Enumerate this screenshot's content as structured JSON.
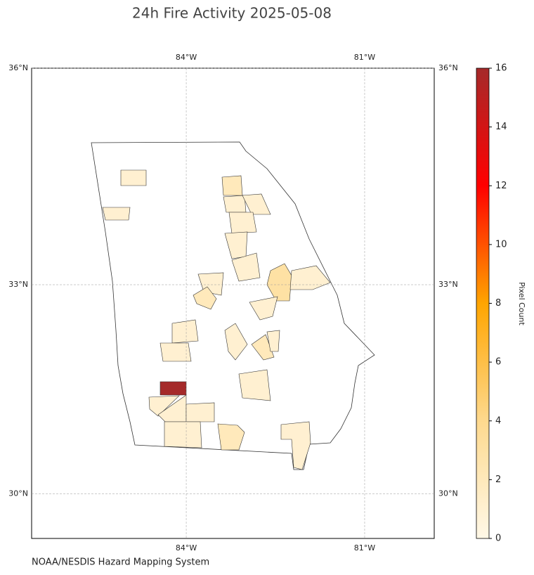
{
  "chart_data": {
    "type": "choropleth",
    "title": "24h Fire Activity 2025-05-08",
    "source": "NOAA/NESDIS Hazard Mapping System",
    "projection": "mercator",
    "xlim": [
      -86.6,
      -79.83
    ],
    "ylim": [
      29.35,
      36
    ],
    "xticks": [
      {
        "value": -84,
        "label": "84°W"
      },
      {
        "value": -81,
        "label": "81°W"
      }
    ],
    "yticks": [
      {
        "value": 30,
        "label": "30°N"
      },
      {
        "value": 33,
        "label": "33°N"
      },
      {
        "value": 36,
        "label": "36°N"
      }
    ],
    "grid": true,
    "regions": {
      "values": [
        16,
        1,
        1,
        2,
        1,
        1,
        1,
        1,
        1,
        3,
        1,
        1,
        2,
        1,
        1,
        1,
        1,
        2,
        1,
        1,
        1,
        1,
        1,
        1,
        2,
        1
      ]
    },
    "colorbar": {
      "label": "Pixel Count",
      "lim": [
        0,
        16
      ],
      "ticks": [
        0,
        2,
        4,
        6,
        8,
        10,
        12,
        14,
        16
      ],
      "colors": [
        "#fff8e7",
        "#fed98e",
        "#ffa500",
        "#ff0000",
        "#a52a2a"
      ]
    }
  }
}
